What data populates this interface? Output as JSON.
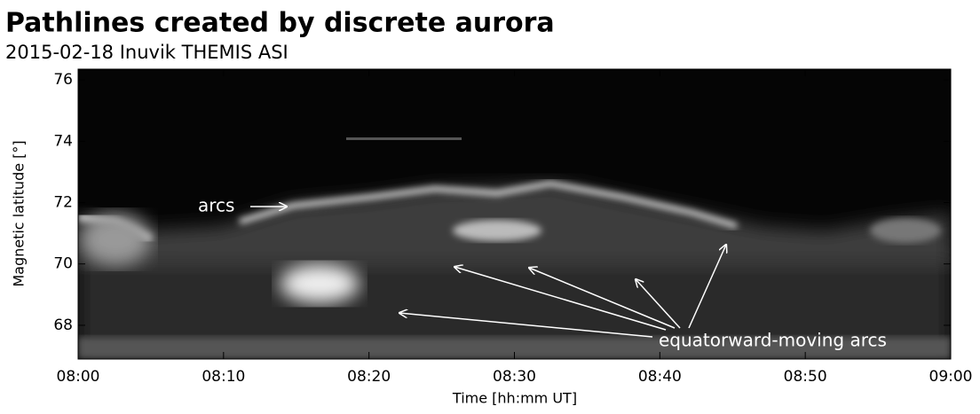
{
  "chart_data": {
    "type": "keogram",
    "title": "Pathlines created by discrete aurora",
    "subtitle": "2015-02-18 Inuvik THEMIS ASI",
    "x_label": "Time [hh:mm UT]",
    "y_label": "Magnetic latitude [°]",
    "xlim": [
      "08:00",
      "09:00"
    ],
    "xticks": [
      "08:00",
      "08:10",
      "08:20",
      "08:30",
      "08:40",
      "08:50",
      "09:00"
    ],
    "ylim": [
      66.9,
      76.35
    ],
    "yticks": [
      68,
      70,
      72,
      74,
      76
    ],
    "annotations": [
      "arcs",
      "equatorward-moving arcs"
    ]
  }
}
